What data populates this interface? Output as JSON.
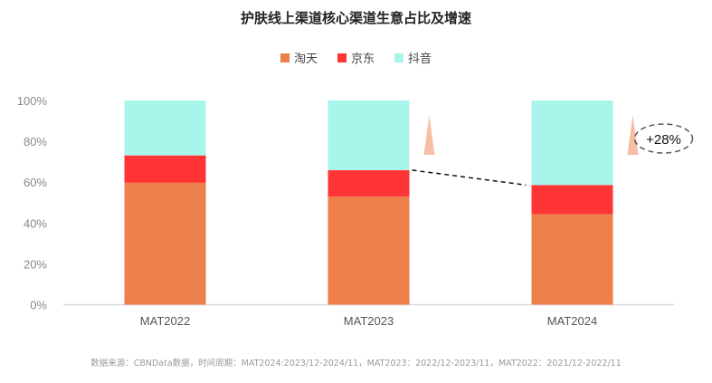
{
  "chart_data": {
    "type": "bar",
    "stacked": true,
    "title": "护肤线上渠道核心渠道生意占比及增速",
    "categories": [
      "MAT2022",
      "MAT2023",
      "MAT2024"
    ],
    "series": [
      {
        "name": "淘天",
        "color": "#EC7F4A",
        "values": [
          59.7,
          52.9,
          44.3
        ]
      },
      {
        "name": "京东",
        "color": "#FF3535",
        "values": [
          13.4,
          13.0,
          14.3
        ]
      },
      {
        "name": "抖音",
        "color": "#A8F5EC",
        "values": [
          26.9,
          34.1,
          41.4
        ]
      }
    ],
    "ylim": [
      0,
      100
    ],
    "yticks": [
      "0%",
      "20%",
      "40%",
      "60%",
      "80%",
      "100%"
    ],
    "legend_position": "top",
    "annotation": "+28%",
    "footnote": "数据来源：CBNData数据，时间周期：MAT2024:2023/12-2024/11，MAT2023：2022/12-2023/11，MAT2022：2021/12-2022/11"
  }
}
